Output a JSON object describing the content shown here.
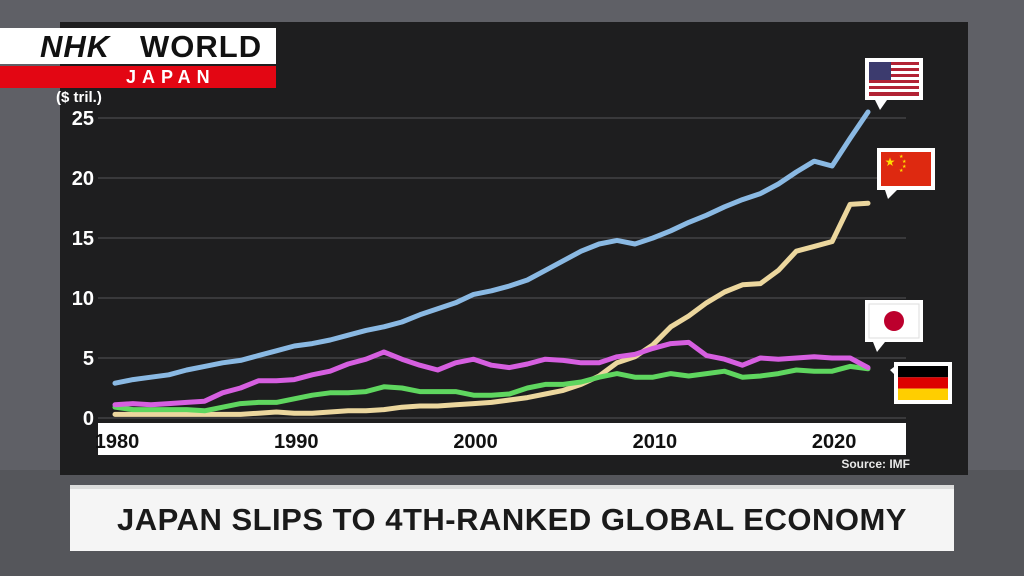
{
  "logo": {
    "brand": "NHK",
    "world": "WORLD",
    "region": "JAPAN"
  },
  "headline": "JAPAN SLIPS TO 4TH-RANKED GLOBAL ECONOMY",
  "source": "Source: IMF",
  "flags": [
    "us-flag-icon",
    "china-flag-icon",
    "japan-flag-icon",
    "germany-flag-icon"
  ],
  "colors": {
    "us": "#8ab9e3",
    "china": "#ecd79e",
    "japan": "#d65fe0",
    "germany": "#5fd65f",
    "panel": "#1e1e1f",
    "axis_strip": "#ffffff",
    "brand_red": "#e30613"
  },
  "chart_data": {
    "type": "line",
    "title": "",
    "ylabel": "($ tril.)",
    "xlabel": "",
    "ylim": [
      0,
      25
    ],
    "xlim": [
      1980,
      2022
    ],
    "yticks": [
      "0",
      "5",
      "10",
      "15",
      "20",
      "25"
    ],
    "xticks": [
      "1980",
      "1990",
      "2000",
      "2010",
      "2020"
    ],
    "grid": true,
    "legend": "flags at line ends (right)",
    "x": [
      1980,
      1981,
      1982,
      1983,
      1984,
      1985,
      1986,
      1987,
      1988,
      1989,
      1990,
      1991,
      1992,
      1993,
      1994,
      1995,
      1996,
      1997,
      1998,
      1999,
      2000,
      2001,
      2002,
      2003,
      2004,
      2005,
      2006,
      2007,
      2008,
      2009,
      2010,
      2011,
      2012,
      2013,
      2014,
      2015,
      2016,
      2017,
      2018,
      2019,
      2020,
      2021,
      2022
    ],
    "series": [
      {
        "key": "us",
        "values": [
          2.9,
          3.2,
          3.4,
          3.6,
          4.0,
          4.3,
          4.6,
          4.8,
          5.2,
          5.6,
          6.0,
          6.2,
          6.5,
          6.9,
          7.3,
          7.6,
          8.0,
          8.6,
          9.1,
          9.6,
          10.3,
          10.6,
          11.0,
          11.5,
          12.3,
          13.1,
          13.9,
          14.5,
          14.8,
          14.5,
          15.0,
          15.6,
          16.3,
          16.9,
          17.6,
          18.2,
          18.7,
          19.5,
          20.5,
          21.4,
          21.0,
          23.3,
          25.5
        ]
      },
      {
        "key": "china",
        "values": [
          0.3,
          0.3,
          0.3,
          0.3,
          0.3,
          0.3,
          0.3,
          0.3,
          0.4,
          0.5,
          0.4,
          0.4,
          0.5,
          0.6,
          0.6,
          0.7,
          0.9,
          1.0,
          1.0,
          1.1,
          1.2,
          1.3,
          1.5,
          1.7,
          2.0,
          2.3,
          2.8,
          3.5,
          4.6,
          5.1,
          6.1,
          7.6,
          8.5,
          9.6,
          10.5,
          11.1,
          11.2,
          12.3,
          13.9,
          14.3,
          14.7,
          17.8,
          17.9
        ]
      },
      {
        "key": "japan",
        "values": [
          1.1,
          1.2,
          1.1,
          1.2,
          1.3,
          1.4,
          2.1,
          2.5,
          3.1,
          3.1,
          3.2,
          3.6,
          3.9,
          4.5,
          4.9,
          5.5,
          4.9,
          4.4,
          4.0,
          4.6,
          4.9,
          4.4,
          4.2,
          4.5,
          4.9,
          4.8,
          4.6,
          4.6,
          5.1,
          5.3,
          5.8,
          6.2,
          6.3,
          5.2,
          4.9,
          4.4,
          5.0,
          4.9,
          5.0,
          5.1,
          5.0,
          5.0,
          4.2
        ]
      },
      {
        "key": "germany",
        "values": [
          0.9,
          0.7,
          0.7,
          0.7,
          0.7,
          0.6,
          0.9,
          1.2,
          1.3,
          1.3,
          1.6,
          1.9,
          2.1,
          2.1,
          2.2,
          2.6,
          2.5,
          2.2,
          2.2,
          2.2,
          1.9,
          1.9,
          2.0,
          2.5,
          2.8,
          2.8,
          3.0,
          3.4,
          3.7,
          3.4,
          3.4,
          3.7,
          3.5,
          3.7,
          3.9,
          3.4,
          3.5,
          3.7,
          4.0,
          3.9,
          3.9,
          4.3,
          4.1
        ]
      }
    ]
  }
}
